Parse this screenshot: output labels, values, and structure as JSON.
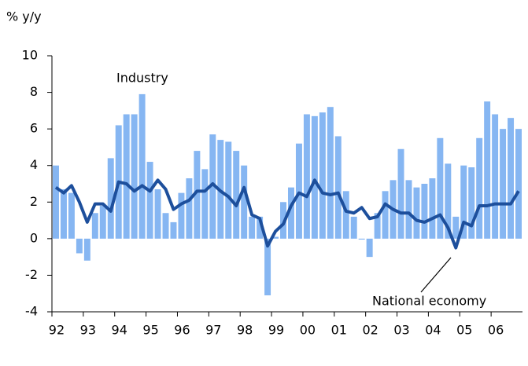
{
  "chart_data": {
    "type": "bar-line",
    "y_axis_label": "% y/y",
    "categories": [
      "92",
      null,
      null,
      null,
      "93",
      null,
      null,
      null,
      "94",
      null,
      null,
      null,
      "95",
      null,
      null,
      null,
      "96",
      null,
      null,
      null,
      "97",
      null,
      null,
      null,
      "98",
      null,
      null,
      null,
      "99",
      null,
      null,
      null,
      "00",
      null,
      null,
      null,
      "01",
      null,
      null,
      null,
      "02",
      null,
      null,
      null,
      "03",
      null,
      null,
      null,
      "04",
      null,
      null,
      null,
      "05",
      null,
      null,
      null,
      "06",
      null,
      null,
      null
    ],
    "series": [
      {
        "name": "Industry",
        "type": "bar",
        "color": "#86b6f2",
        "values": [
          4.0,
          2.7,
          2.5,
          -0.8,
          -1.2,
          1.4,
          1.8,
          4.4,
          6.2,
          6.8,
          6.8,
          7.9,
          4.2,
          2.7,
          1.4,
          0.9,
          2.5,
          3.3,
          4.8,
          3.8,
          5.7,
          5.4,
          5.3,
          4.8,
          4.0,
          1.2,
          1.2,
          -3.1,
          0.1,
          2.0,
          2.8,
          5.2,
          6.8,
          6.7,
          6.9,
          7.2,
          5.6,
          2.6,
          1.2,
          -0.05,
          -1.0,
          1.4,
          2.6,
          3.2,
          4.9,
          3.2,
          2.8,
          3.0,
          3.3,
          5.5,
          4.1,
          1.2,
          4.0,
          3.9,
          5.5,
          7.5,
          6.8,
          6.0,
          6.6,
          6.0
        ]
      },
      {
        "name": "National economy",
        "type": "line",
        "color": "#1d4f9c",
        "values": [
          2.8,
          2.5,
          2.9,
          2.0,
          0.9,
          1.9,
          1.9,
          1.5,
          3.1,
          3.0,
          2.6,
          2.9,
          2.6,
          3.2,
          2.7,
          1.6,
          1.9,
          2.1,
          2.6,
          2.6,
          3.0,
          2.6,
          2.3,
          1.8,
          2.8,
          1.3,
          1.1,
          -0.4,
          0.4,
          0.8,
          1.8,
          2.5,
          2.3,
          3.2,
          2.5,
          2.4,
          2.5,
          1.5,
          1.4,
          1.7,
          1.1,
          1.2,
          1.9,
          1.6,
          1.4,
          1.4,
          1.0,
          0.9,
          1.1,
          1.3,
          0.6,
          -0.5,
          0.9,
          0.7,
          1.8,
          1.8,
          1.9,
          1.9,
          1.9,
          2.6
        ]
      }
    ],
    "ylim": [
      -4,
      10
    ],
    "yticks": [
      -4,
      -2,
      0,
      2,
      4,
      6,
      8,
      10
    ],
    "grid": false
  }
}
